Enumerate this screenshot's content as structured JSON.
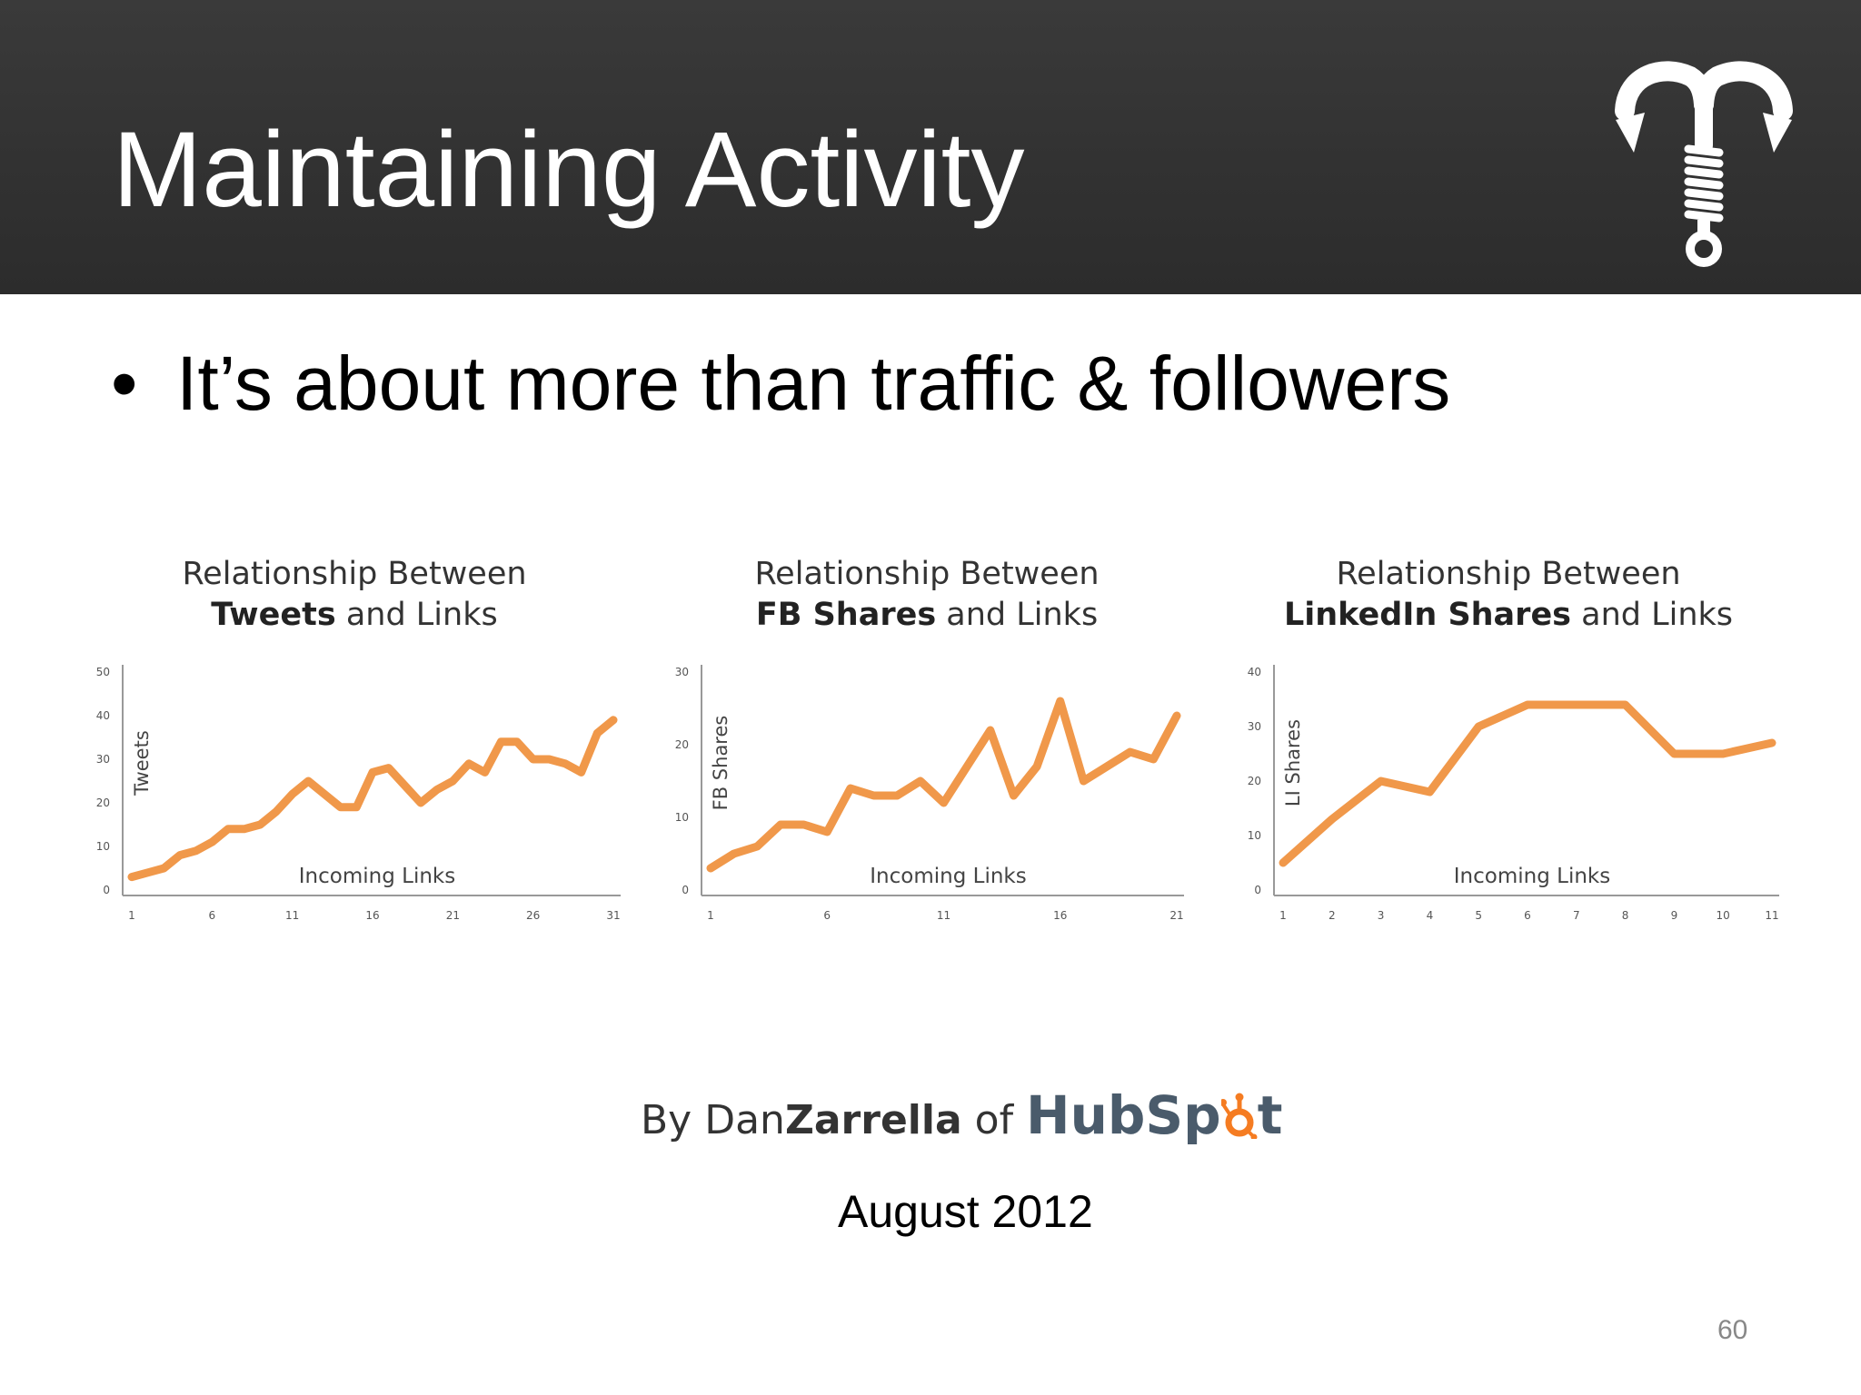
{
  "slide": {
    "title": "Maintaining Activity",
    "bullet": "It’s about more than traffic & followers",
    "credit_prefix": "By Dan",
    "credit_name": "Zarrella",
    "credit_of": " of ",
    "credit_brand_a": "HubSp",
    "credit_brand_b": "t",
    "date": "August 2012",
    "page_number": "60"
  },
  "colors": {
    "line": "#F0984A",
    "header_bg": "#333333",
    "hubspot_orange": "#F57C22"
  },
  "chart_data": [
    {
      "type": "line",
      "title_plain": "Relationship Between",
      "title_bold": "Tweets",
      "title_rest": " and Links",
      "xlabel": "Incoming Links",
      "ylabel": "Tweets",
      "xlim": [
        1,
        31
      ],
      "ylim": [
        0,
        50
      ],
      "xticks": [
        1,
        6,
        11,
        16,
        21,
        26,
        31
      ],
      "yticks": [
        0,
        10,
        20,
        30,
        40,
        50
      ],
      "x": [
        1,
        2,
        3,
        4,
        5,
        6,
        7,
        8,
        9,
        10,
        11,
        12,
        13,
        14,
        15,
        16,
        17,
        18,
        19,
        20,
        21,
        22,
        23,
        24,
        25,
        26,
        27,
        28,
        29,
        30,
        31
      ],
      "values": [
        3,
        4,
        5,
        8,
        9,
        11,
        14,
        14,
        15,
        18,
        22,
        25,
        22,
        19,
        19,
        27,
        28,
        24,
        20,
        23,
        25,
        29,
        27,
        34,
        34,
        30,
        30,
        29,
        27,
        36,
        39
      ]
    },
    {
      "type": "line",
      "title_plain": "Relationship Between",
      "title_bold": "FB Shares",
      "title_rest": " and Links",
      "xlabel": "Incoming Links",
      "ylabel": "FB Shares",
      "xlim": [
        1,
        21
      ],
      "ylim": [
        0,
        30
      ],
      "xticks": [
        1,
        6,
        11,
        16,
        21
      ],
      "yticks": [
        0,
        10,
        20,
        30
      ],
      "x": [
        1,
        2,
        3,
        4,
        5,
        6,
        7,
        8,
        9,
        10,
        11,
        12,
        13,
        14,
        15,
        16,
        17,
        18,
        19,
        20,
        21
      ],
      "values": [
        3,
        5,
        6,
        9,
        9,
        8,
        14,
        13,
        13,
        15,
        12,
        17,
        22,
        13,
        17,
        26,
        15,
        17,
        19,
        18,
        24
      ]
    },
    {
      "type": "line",
      "title_plain": "Relationship Between",
      "title_bold": "LinkedIn Shares",
      "title_rest": " and Links",
      "xlabel": "Incoming Links",
      "ylabel": "LI Shares",
      "xlim": [
        1,
        11
      ],
      "ylim": [
        0,
        40
      ],
      "xticks": [
        1,
        2,
        3,
        4,
        5,
        6,
        7,
        8,
        9,
        10,
        11
      ],
      "yticks": [
        0,
        10,
        20,
        30,
        40
      ],
      "x": [
        1,
        2,
        3,
        4,
        5,
        6,
        7,
        8,
        9,
        10,
        11
      ],
      "values": [
        5,
        13,
        20,
        18,
        30,
        34,
        34,
        34,
        25,
        25,
        27
      ]
    }
  ]
}
